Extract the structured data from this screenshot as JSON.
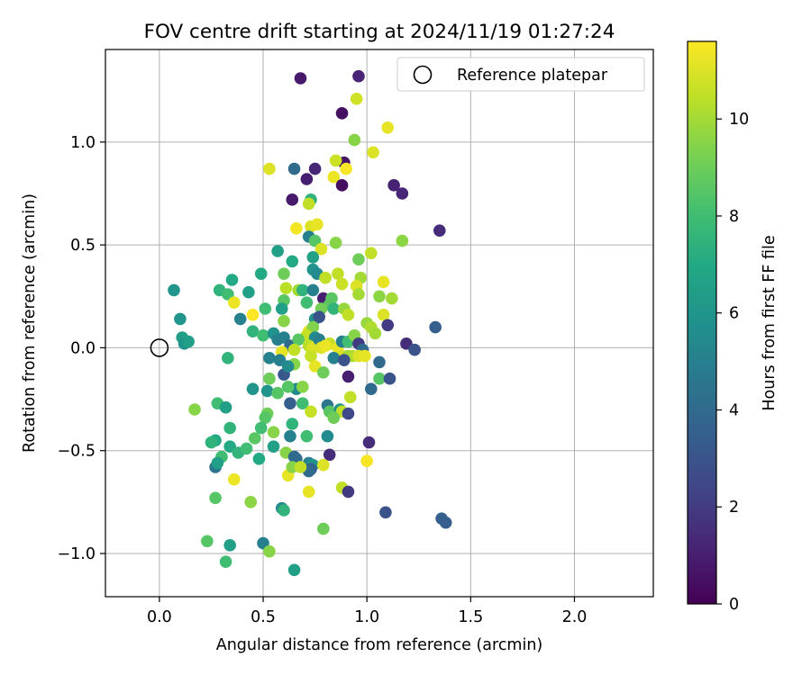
{
  "chart_data": {
    "type": "scatter",
    "title": "FOV centre drift starting at 2024/11/19 01:27:24",
    "xlabel": "Angular distance from reference (arcmin)",
    "ylabel": "Rotation from reference (arcmin)",
    "xlim": [
      -0.26,
      2.38
    ],
    "ylim": [
      -1.21,
      1.45
    ],
    "xticks": [
      0.0,
      0.5,
      1.0,
      1.5,
      2.0
    ],
    "xtick_labels": [
      "0.0",
      "0.5",
      "1.0",
      "1.5",
      "2.0"
    ],
    "yticks": [
      -1.0,
      -0.5,
      0.0,
      0.5,
      1.0
    ],
    "ytick_labels": [
      "−1.0",
      "−0.5",
      "0.0",
      "0.5",
      "1.0"
    ],
    "grid": true,
    "legend": {
      "placement": "top-right",
      "entries": [
        "Reference platepar"
      ]
    },
    "reference_point": {
      "label": "Reference platepar",
      "x": 0.0,
      "y": 0.0
    },
    "colorbar": {
      "label": "Hours from first FF file",
      "colormap": "viridis",
      "range": [
        0,
        11.6
      ],
      "ticks": [
        0,
        2,
        4,
        6,
        8,
        10
      ],
      "tick_labels": [
        "0",
        "2",
        "4",
        "6",
        "8",
        "10"
      ]
    },
    "points": [
      [
        0.68,
        1.31,
        0.8
      ],
      [
        0.96,
        1.32,
        1.2
      ],
      [
        0.88,
        1.14,
        0.5
      ],
      [
        0.95,
        1.21,
        10.8
      ],
      [
        1.1,
        1.07,
        11.2
      ],
      [
        0.94,
        1.01,
        9.5
      ],
      [
        0.65,
        0.87,
        4.0
      ],
      [
        0.75,
        0.87,
        1.3
      ],
      [
        0.89,
        0.9,
        0.6
      ],
      [
        0.53,
        0.87,
        11.0
      ],
      [
        0.85,
        0.91,
        10.7
      ],
      [
        0.9,
        0.87,
        11.5
      ],
      [
        1.03,
        0.95,
        11.0
      ],
      [
        0.84,
        0.83,
        11.3
      ],
      [
        0.71,
        0.82,
        1.0
      ],
      [
        0.88,
        0.79,
        0.4
      ],
      [
        1.13,
        0.79,
        1.1
      ],
      [
        1.17,
        0.75,
        1.2
      ],
      [
        0.64,
        0.72,
        0.8
      ],
      [
        0.73,
        0.72,
        7.5
      ],
      [
        0.72,
        0.7,
        10.5
      ],
      [
        0.66,
        0.58,
        11.4
      ],
      [
        0.73,
        0.59,
        11.0
      ],
      [
        0.76,
        0.6,
        11.2
      ],
      [
        0.72,
        0.54,
        5.0
      ],
      [
        0.75,
        0.52,
        8.5
      ],
      [
        0.85,
        0.51,
        9.5
      ],
      [
        0.78,
        0.48,
        11.0
      ],
      [
        1.35,
        0.57,
        1.5
      ],
      [
        1.17,
        0.52,
        9.6
      ],
      [
        0.57,
        0.47,
        6.5
      ],
      [
        0.64,
        0.42,
        7.0
      ],
      [
        0.74,
        0.44,
        6.6
      ],
      [
        0.96,
        0.43,
        9.0
      ],
      [
        1.02,
        0.46,
        10.5
      ],
      [
        0.74,
        0.38,
        6.0
      ],
      [
        0.76,
        0.36,
        5.5
      ],
      [
        0.86,
        0.36,
        10.5
      ],
      [
        0.8,
        0.34,
        10.5
      ],
      [
        0.49,
        0.36,
        7.0
      ],
      [
        0.6,
        0.36,
        9.0
      ],
      [
        0.97,
        0.34,
        10.0
      ],
      [
        0.35,
        0.33,
        7.0
      ],
      [
        0.07,
        0.28,
        6.0
      ],
      [
        0.29,
        0.28,
        7.5
      ],
      [
        0.33,
        0.26,
        8.0
      ],
      [
        0.43,
        0.27,
        6.5
      ],
      [
        0.61,
        0.29,
        10.4
      ],
      [
        0.67,
        0.28,
        10.0
      ],
      [
        0.69,
        0.28,
        7.5
      ],
      [
        0.74,
        0.28,
        5.0
      ],
      [
        0.79,
        0.24,
        1.0
      ],
      [
        0.83,
        0.24,
        8.6
      ],
      [
        0.88,
        0.31,
        10.7
      ],
      [
        0.95,
        0.3,
        11.0
      ],
      [
        1.08,
        0.32,
        11.2
      ],
      [
        1.06,
        0.25,
        9.6
      ],
      [
        1.12,
        0.24,
        10.0
      ],
      [
        0.96,
        0.26,
        10.0
      ],
      [
        0.82,
        0.21,
        8.6
      ],
      [
        0.6,
        0.23,
        8.6
      ],
      [
        0.71,
        0.22,
        8.0
      ],
      [
        0.78,
        0.19,
        9.1
      ],
      [
        0.84,
        0.19,
        7.5
      ],
      [
        0.75,
        0.14,
        6.0
      ],
      [
        0.89,
        0.19,
        9.8
      ],
      [
        0.36,
        0.22,
        11.3
      ],
      [
        0.51,
        0.19,
        8.0
      ],
      [
        0.59,
        0.19,
        6.5
      ],
      [
        0.77,
        0.15,
        3.0
      ],
      [
        0.91,
        0.16,
        10.5
      ],
      [
        0.45,
        0.16,
        11.6
      ],
      [
        0.1,
        0.14,
        6.0
      ],
      [
        0.39,
        0.14,
        5.0
      ],
      [
        0.6,
        0.13,
        9.5
      ],
      [
        1.0,
        0.12,
        9.8
      ],
      [
        1.08,
        0.16,
        11.0
      ],
      [
        1.1,
        0.11,
        2.0
      ],
      [
        1.02,
        0.1,
        10.2
      ],
      [
        1.04,
        0.07,
        10.0
      ],
      [
        0.72,
        0.08,
        11.0
      ],
      [
        0.74,
        0.1,
        9.4
      ],
      [
        0.71,
        0.06,
        10.6
      ],
      [
        0.75,
        0.05,
        5.5
      ],
      [
        0.11,
        0.05,
        6.5
      ],
      [
        0.12,
        0.02,
        6.0
      ],
      [
        0.14,
        0.03,
        6.5
      ],
      [
        0.45,
        0.08,
        7.5
      ],
      [
        0.5,
        0.06,
        8.0
      ],
      [
        0.55,
        0.07,
        6.0
      ],
      [
        0.57,
        0.04,
        5.0
      ],
      [
        0.6,
        0.05,
        5.0
      ],
      [
        0.63,
        0.01,
        4.0
      ],
      [
        0.67,
        0.04,
        8.6
      ],
      [
        0.72,
        0.01,
        10.4
      ],
      [
        0.74,
        0.0,
        11.0
      ],
      [
        0.77,
        0.04,
        5.0
      ],
      [
        0.82,
        0.02,
        10.6
      ],
      [
        0.86,
        0.0,
        11.2
      ],
      [
        0.88,
        0.03,
        5.0
      ],
      [
        0.91,
        0.03,
        8.0
      ],
      [
        0.94,
        0.06,
        9.5
      ],
      [
        0.96,
        0.02,
        2.0
      ],
      [
        0.98,
        -0.01,
        4.0
      ],
      [
        0.88,
        -0.04,
        11.0
      ],
      [
        0.91,
        -0.04,
        10.0
      ],
      [
        0.93,
        -0.04,
        10.2
      ],
      [
        0.96,
        -0.04,
        11.0
      ],
      [
        0.99,
        -0.04,
        11.2
      ],
      [
        1.06,
        -0.07,
        4.0
      ],
      [
        0.59,
        -0.02,
        11.2
      ],
      [
        0.65,
        -0.01,
        10.5
      ],
      [
        0.73,
        -0.04,
        10.6
      ],
      [
        0.78,
        0.0,
        11.0
      ],
      [
        0.8,
        0.01,
        11.3
      ],
      [
        0.84,
        -0.05,
        5.0
      ],
      [
        0.89,
        -0.06,
        3.0
      ],
      [
        0.75,
        -0.09,
        11.2
      ],
      [
        1.19,
        0.02,
        1.5
      ],
      [
        1.23,
        -0.01,
        3.0
      ],
      [
        1.33,
        0.1,
        3.5
      ],
      [
        0.33,
        -0.05,
        7.5
      ],
      [
        0.53,
        -0.05,
        5.0
      ],
      [
        0.58,
        -0.06,
        5.0
      ],
      [
        0.6,
        -0.13,
        3.2
      ],
      [
        0.65,
        -0.08,
        9.5
      ],
      [
        0.62,
        -0.09,
        5.5
      ],
      [
        0.66,
        -0.2,
        5.5
      ],
      [
        0.69,
        -0.19,
        9.5
      ],
      [
        0.62,
        -0.19,
        8.5
      ],
      [
        0.79,
        -0.12,
        9.0
      ],
      [
        0.91,
        -0.14,
        1.0
      ],
      [
        1.06,
        -0.15,
        8.5
      ],
      [
        1.11,
        -0.15,
        3.0
      ],
      [
        1.02,
        -0.2,
        4.0
      ],
      [
        0.53,
        -0.15,
        9.0
      ],
      [
        0.45,
        -0.2,
        6.0
      ],
      [
        0.52,
        -0.21,
        6.0
      ],
      [
        0.57,
        -0.22,
        8.5
      ],
      [
        0.63,
        -0.27,
        3.5
      ],
      [
        0.69,
        -0.27,
        8.0
      ],
      [
        0.73,
        -0.31,
        10.6
      ],
      [
        0.81,
        -0.28,
        4.5
      ],
      [
        0.82,
        -0.31,
        8.6
      ],
      [
        0.87,
        -0.3,
        6.0
      ],
      [
        0.88,
        -0.31,
        10.5
      ],
      [
        0.91,
        -0.32,
        2.5
      ],
      [
        0.84,
        -0.34,
        9.0
      ],
      [
        0.92,
        -0.24,
        10.5
      ],
      [
        0.28,
        -0.27,
        8.0
      ],
      [
        0.32,
        -0.29,
        6.5
      ],
      [
        0.17,
        -0.3,
        9.5
      ],
      [
        0.52,
        -0.32,
        9.0
      ],
      [
        0.51,
        -0.34,
        8.5
      ],
      [
        0.64,
        -0.37,
        7.5
      ],
      [
        0.55,
        -0.41,
        9.5
      ],
      [
        0.63,
        -0.43,
        5.0
      ],
      [
        0.71,
        -0.43,
        8.0
      ],
      [
        0.81,
        -0.43,
        5.5
      ],
      [
        0.34,
        -0.39,
        7.5
      ],
      [
        0.27,
        -0.45,
        7.0
      ],
      [
        0.25,
        -0.46,
        7.5
      ],
      [
        0.46,
        -0.44,
        8.6
      ],
      [
        0.34,
        -0.48,
        7.0
      ],
      [
        0.38,
        -0.51,
        7.5
      ],
      [
        0.42,
        -0.49,
        8.0
      ],
      [
        0.55,
        -0.48,
        6.5
      ],
      [
        0.61,
        -0.51,
        9.5
      ],
      [
        0.65,
        -0.53,
        4.0
      ],
      [
        0.66,
        -0.54,
        4.0
      ],
      [
        0.72,
        -0.56,
        5.0
      ],
      [
        0.74,
        -0.57,
        6.0
      ],
      [
        0.73,
        -0.59,
        3.5
      ],
      [
        0.72,
        -0.6,
        4.0
      ],
      [
        0.82,
        -0.52,
        1.5
      ],
      [
        0.79,
        -0.57,
        11.0
      ],
      [
        0.3,
        -0.53,
        8.0
      ],
      [
        0.27,
        -0.58,
        4.5
      ],
      [
        0.28,
        -0.56,
        6.5
      ],
      [
        0.48,
        -0.54,
        7.0
      ],
      [
        0.62,
        -0.62,
        11.2
      ],
      [
        0.64,
        -0.58,
        9.5
      ],
      [
        0.68,
        -0.58,
        10.5
      ],
      [
        0.36,
        -0.64,
        11.3
      ],
      [
        0.88,
        -0.68,
        10.5
      ],
      [
        0.91,
        -0.7,
        2.0
      ],
      [
        0.72,
        -0.7,
        11.2
      ],
      [
        1.01,
        -0.46,
        1.5
      ],
      [
        0.27,
        -0.73,
        8.5
      ],
      [
        0.44,
        -0.75,
        9.6
      ],
      [
        0.59,
        -0.78,
        5.5
      ],
      [
        0.6,
        -0.79,
        7.5
      ],
      [
        1.09,
        -0.8,
        3.0
      ],
      [
        0.79,
        -0.88,
        9.0
      ],
      [
        1.36,
        -0.83,
        3.5
      ],
      [
        1.38,
        -0.85,
        3.5
      ],
      [
        0.23,
        -0.94,
        8.5
      ],
      [
        0.34,
        -0.96,
        6.5
      ],
      [
        0.5,
        -0.95,
        5.0
      ],
      [
        0.53,
        -0.99,
        9.5
      ],
      [
        0.32,
        -1.04,
        8.0
      ],
      [
        0.65,
        -1.08,
        6.5
      ],
      [
        1.0,
        -0.55,
        11.5
      ],
      [
        0.49,
        -0.39,
        8.0
      ]
    ]
  }
}
